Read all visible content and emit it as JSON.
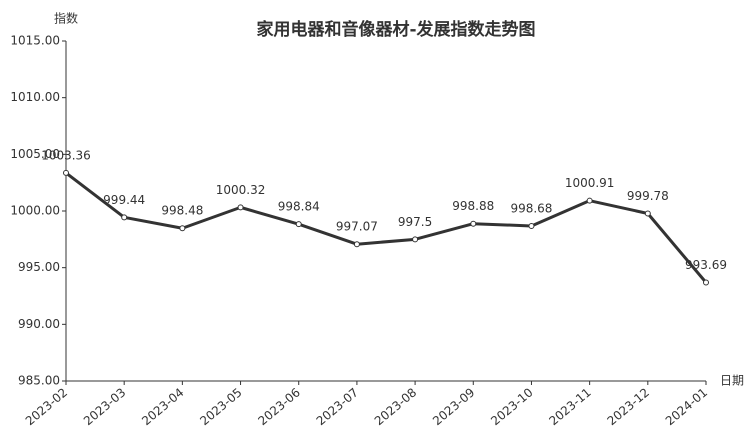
{
  "chart_data": {
    "type": "line",
    "title": "家用电器和音像器材-发展指数走势图",
    "y_label": "指数",
    "x_label": "日期",
    "categories": [
      "2023-02",
      "2023-03",
      "2023-04",
      "2023-05",
      "2023-06",
      "2023-07",
      "2023-08",
      "2023-09",
      "2023-10",
      "2023-11",
      "2023-12",
      "2024-01"
    ],
    "values": [
      1003.36,
      999.44,
      998.48,
      1000.32,
      998.84,
      997.07,
      997.5,
      998.88,
      998.68,
      1000.91,
      999.78,
      993.69
    ],
    "color": "#333333",
    "ylim": [
      985,
      1015
    ],
    "yticks": [
      {
        "value": 985,
        "label": "985.00"
      },
      {
        "value": 990,
        "label": "990.00"
      },
      {
        "value": 995,
        "label": "995.00"
      },
      {
        "value": 1000,
        "label": "1000.00"
      },
      {
        "value": 1005,
        "label": "1005.00"
      },
      {
        "value": 1010,
        "label": "1010.00"
      },
      {
        "value": 1015,
        "label": "1015.00"
      }
    ]
  }
}
